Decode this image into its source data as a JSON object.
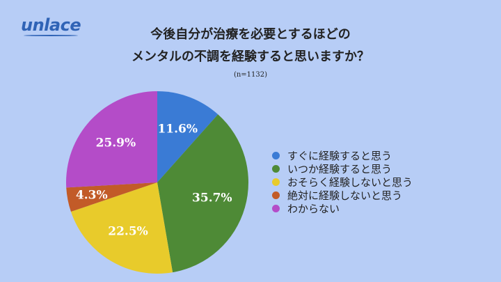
{
  "brand": {
    "name": "unlace"
  },
  "chart_data": {
    "type": "pie",
    "title": "今後自分が治療を必要とするほどのメンタルの不調を経験すると思いますか？",
    "title_lines": [
      "今後自分が治療を必要とするほどの",
      "メンタルの不調を経験すると思いますか？"
    ],
    "note": "(n=1132)",
    "slices": [
      {
        "label": "すぐに経験すると思う",
        "value": 11.6,
        "display": "11.6%",
        "color": "#3a7bd5"
      },
      {
        "label": "いつか経験すると思う",
        "value": 35.7,
        "display": "35.7%",
        "color": "#4e8a36"
      },
      {
        "label": "おそらく経験しないと思う",
        "value": 22.5,
        "display": "22.5%",
        "color": "#e8cb2b"
      },
      {
        "label": "絶対に経験しないと思う",
        "value": 4.3,
        "display": "4.3%",
        "color": "#c25b28"
      },
      {
        "label": "わからない",
        "value": 25.9,
        "display": "25.9%",
        "color": "#b44cc8"
      }
    ],
    "start": "top",
    "direction": "clockwise",
    "legend_position": "right"
  }
}
